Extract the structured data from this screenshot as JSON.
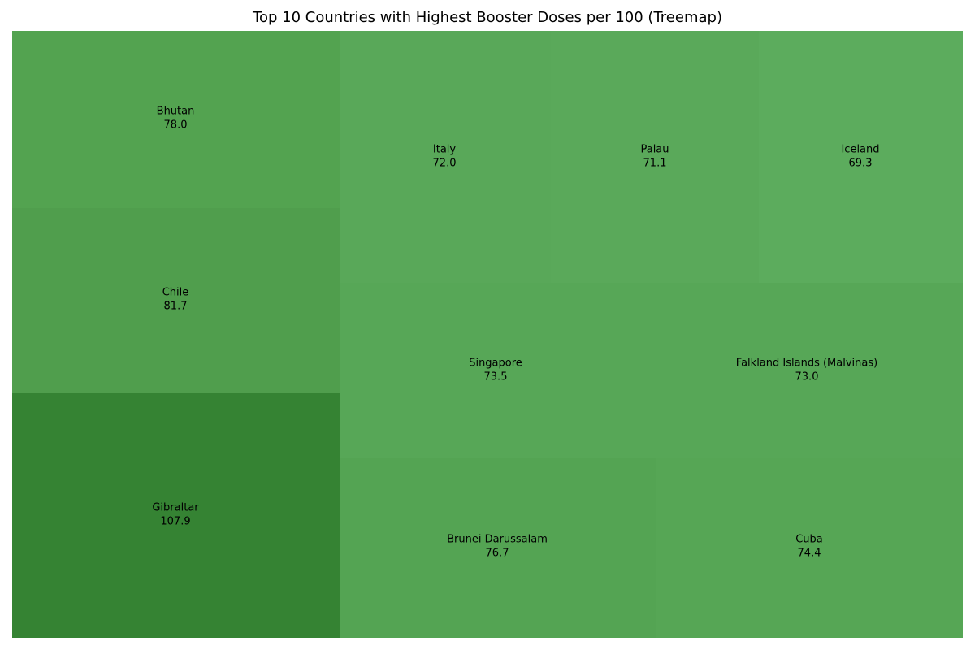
{
  "chart_data": {
    "type": "treemap",
    "title": "Top 10 Countries with Highest Booster Doses per 100 (Treemap)",
    "items": [
      {
        "label": "Gibraltar",
        "value_text": "107.9",
        "value": 107.9,
        "color": "#358333"
      },
      {
        "label": "Chile",
        "value_text": "81.7",
        "value": 81.7,
        "color": "#509e4d"
      },
      {
        "label": "Bhutan",
        "value_text": "78.0",
        "value": 78.0,
        "color": "#53a350"
      },
      {
        "label": "Brunei Darussalam",
        "value_text": "76.7",
        "value": 76.7,
        "color": "#54a453"
      },
      {
        "label": "Cuba",
        "value_text": "74.4",
        "value": 74.4,
        "color": "#56a655"
      },
      {
        "label": "Singapore",
        "value_text": "73.5",
        "value": 73.5,
        "color": "#57a757"
      },
      {
        "label": "Falkland Islands (Malvinas)",
        "value_text": "73.0",
        "value": 73.0,
        "color": "#57a757"
      },
      {
        "label": "Italy",
        "value_text": "72.0",
        "value": 72.0,
        "color": "#59a859"
      },
      {
        "label": "Palau",
        "value_text": "71.1",
        "value": 71.1,
        "color": "#5aa95a"
      },
      {
        "label": "Iceland",
        "value_text": "69.3",
        "value": 69.3,
        "color": "#5cac5d"
      }
    ],
    "legend": "none",
    "grid": false
  }
}
